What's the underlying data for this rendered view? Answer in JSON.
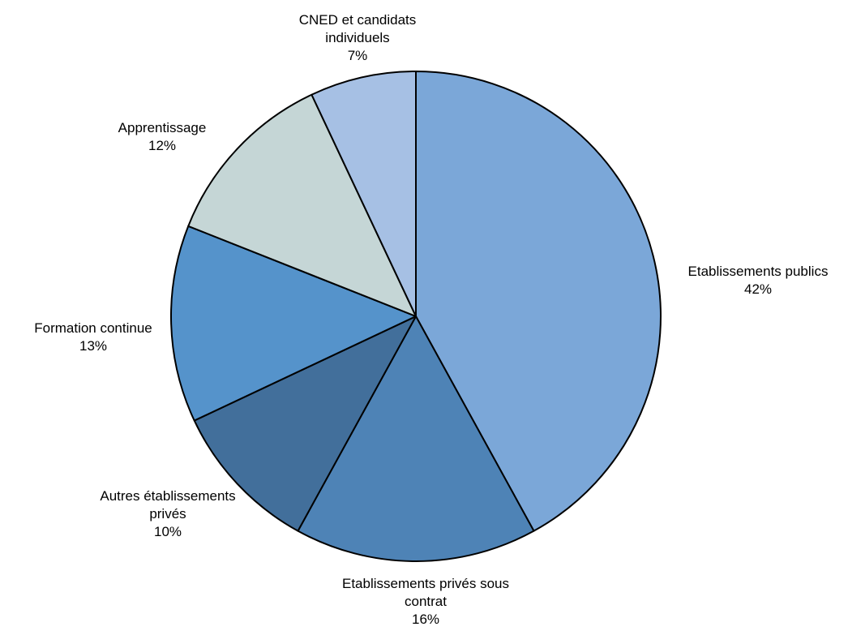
{
  "chart_data": {
    "type": "pie",
    "start_angle_deg": 0,
    "direction": "clockwise",
    "slices": [
      {
        "name_lines": [
          "Etablissements publics"
        ],
        "pct_label": "42%",
        "value": 42,
        "color": "#7BA7D8"
      },
      {
        "name_lines": [
          "Etablissements privés sous",
          "contrat"
        ],
        "pct_label": "16%",
        "value": 16,
        "color": "#4E83B6"
      },
      {
        "name_lines": [
          "Autres établissements",
          "privés"
        ],
        "pct_label": "10%",
        "value": 10,
        "color": "#426F9B"
      },
      {
        "name_lines": [
          "Formation continue"
        ],
        "pct_label": "13%",
        "value": 13,
        "color": "#5593CB"
      },
      {
        "name_lines": [
          "Apprentissage"
        ],
        "pct_label": "12%",
        "value": 12,
        "color": "#C5D6D6"
      },
      {
        "name_lines": [
          "CNED et candidats",
          "individuels"
        ],
        "pct_label": "7%",
        "value": 7,
        "color": "#A6C0E4"
      }
    ]
  }
}
